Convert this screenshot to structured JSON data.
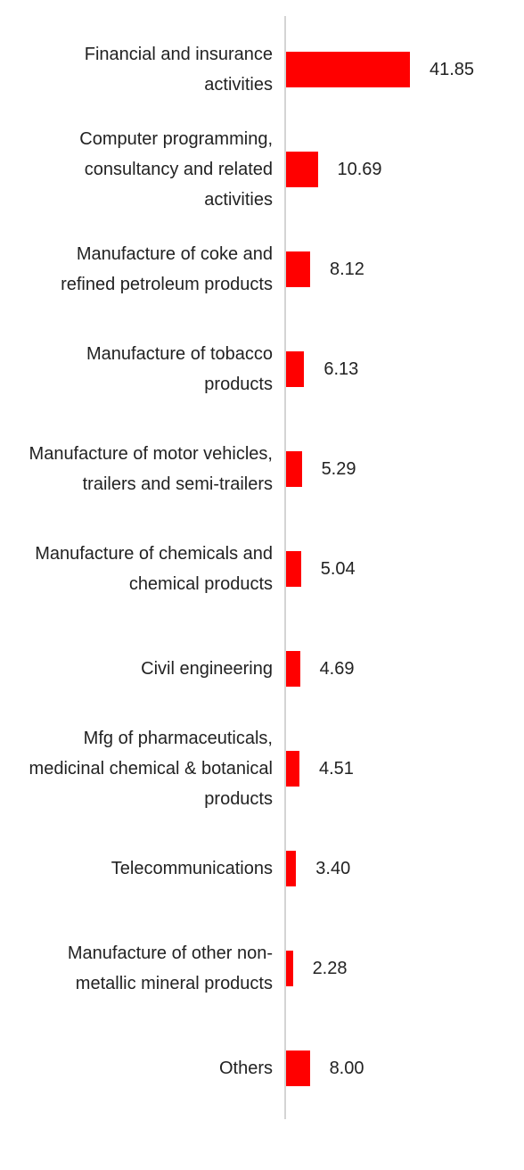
{
  "chart_data": {
    "type": "bar",
    "orientation": "horizontal",
    "color": "#ff0000",
    "categories": [
      "Financial and insurance activities",
      "Computer programming, consultancy and related activities",
      "Manufacture of coke and refined petroleum products",
      "Manufacture of tobacco products",
      "Manufacture of motor vehicles, trailers and semi-trailers",
      "Manufacture of chemicals and chemical products",
      "Civil engineering",
      "Mfg of pharmaceuticals, medicinal chemical & botanical products",
      "Telecommunications",
      "Manufacture of other non-metallic mineral products",
      "Others"
    ],
    "values": [
      41.85,
      10.69,
      8.12,
      6.13,
      5.29,
      5.04,
      4.69,
      4.51,
      3.4,
      2.28,
      8.0
    ],
    "value_labels": [
      "41.85",
      "10.69",
      "8.12",
      "6.13",
      "5.29",
      "5.04",
      "4.69",
      "4.51",
      "3.40",
      "2.28",
      "8.00"
    ]
  }
}
